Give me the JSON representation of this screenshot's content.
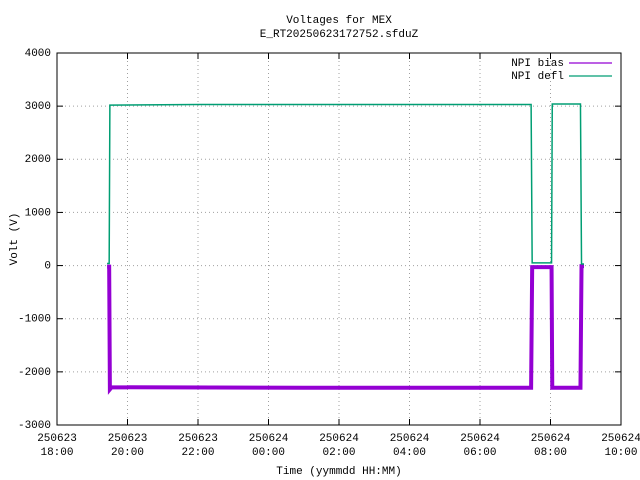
{
  "chart_data": {
    "type": "line",
    "title": "Voltages for MEX",
    "subtitle": "E_RT20250623172752.sfduZ",
    "xlabel": "Time (yymmdd HH:MM)",
    "ylabel": "Volt (V)",
    "xlim": [
      18,
      34
    ],
    "xticks": [
      {
        "value": 18,
        "label": [
          "250623",
          "18:00"
        ]
      },
      {
        "value": 20,
        "label": [
          "250623",
          "20:00"
        ]
      },
      {
        "value": 22,
        "label": [
          "250623",
          "22:00"
        ]
      },
      {
        "value": 24,
        "label": [
          "250624",
          "00:00"
        ]
      },
      {
        "value": 26,
        "label": [
          "250624",
          "02:00"
        ]
      },
      {
        "value": 28,
        "label": [
          "250624",
          "04:00"
        ]
      },
      {
        "value": 30,
        "label": [
          "250624",
          "06:00"
        ]
      },
      {
        "value": 32,
        "label": [
          "250624",
          "08:00"
        ]
      },
      {
        "value": 34,
        "label": [
          "250624",
          "10:00"
        ]
      }
    ],
    "ylim": [
      -3000,
      4000
    ],
    "yticks": [
      -3000,
      -2000,
      -1000,
      0,
      1000,
      2000,
      3000,
      4000
    ],
    "grid": true,
    "legend": "top-right",
    "series": [
      {
        "name": "NPI bias",
        "color": "#9400d3",
        "x": [
          19.42,
          19.48,
          19.5,
          19.55,
          25,
          31.45,
          31.48,
          32.03,
          32.05,
          32.85,
          32.88,
          32.95
        ],
        "values": [
          -20,
          -20,
          -2330,
          -2290,
          -2300,
          -2300,
          -30,
          -30,
          -2300,
          -2300,
          -10,
          -10
        ]
      },
      {
        "name": "NPI defl",
        "color": "#009e73",
        "x": [
          19.42,
          19.48,
          19.5,
          22,
          25,
          31.45,
          31.48,
          32.03,
          32.05,
          32.85,
          32.88,
          32.95
        ],
        "values": [
          40,
          40,
          3020,
          3030,
          3030,
          3030,
          50,
          50,
          3040,
          3040,
          30,
          30
        ]
      }
    ]
  }
}
